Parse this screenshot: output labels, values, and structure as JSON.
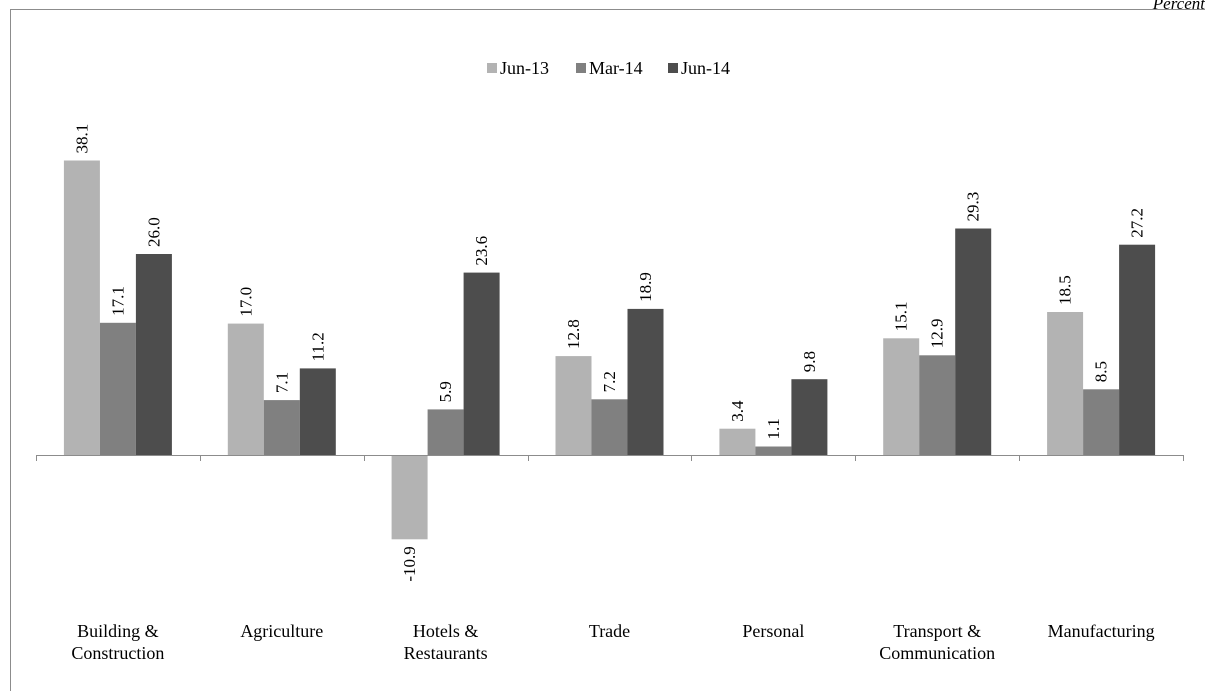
{
  "unit_label": "Percent",
  "chart_data": {
    "type": "bar",
    "title": "",
    "xlabel": "",
    "ylabel": "",
    "categories": [
      "Building & Construction",
      "Agriculture",
      "Hotels & Restaurants",
      "Trade",
      "Personal",
      "Transport & Communication",
      "Manufacturing"
    ],
    "category_lines": [
      [
        "Building &",
        "Construction"
      ],
      [
        "Agriculture"
      ],
      [
        "Hotels &",
        "Restaurants"
      ],
      [
        "Trade"
      ],
      [
        "Personal"
      ],
      [
        "Transport &",
        "Communication"
      ],
      [
        "Manufacturing"
      ]
    ],
    "series": [
      {
        "name": "Jun-13",
        "color": "#b3b3b3",
        "values": [
          38.1,
          17.0,
          -10.9,
          12.8,
          3.4,
          15.1,
          18.5
        ],
        "labels": [
          "38.1",
          "17.0",
          "-10.9",
          "12.8",
          "3.4",
          "15.1",
          "18.5"
        ]
      },
      {
        "name": "Mar-14",
        "color": "#808080",
        "values": [
          17.1,
          7.1,
          5.9,
          7.2,
          1.1,
          12.9,
          8.5
        ],
        "labels": [
          "17.1",
          "7.1",
          "5.9",
          "7.2",
          "1.1",
          "12.9",
          "8.5"
        ]
      },
      {
        "name": "Jun-14",
        "color": "#4d4d4d",
        "values": [
          26.0,
          11.2,
          23.6,
          18.9,
          9.8,
          29.3,
          27.2
        ],
        "labels": [
          "26.0",
          "11.2",
          "23.6",
          "18.9",
          "9.8",
          "29.3",
          "27.2"
        ]
      }
    ],
    "legend_position": "top-center",
    "grid": false,
    "data_labels": true,
    "data_label_rotation": -90
  }
}
